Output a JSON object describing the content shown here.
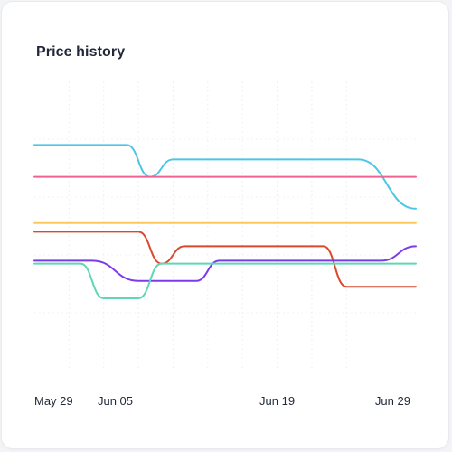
{
  "card": {
    "title": "Price history"
  },
  "chart_data": {
    "type": "line",
    "title": "Price history",
    "xlabel": "",
    "ylabel": "",
    "grid": true,
    "legend": "none",
    "x_tick_labels": [
      "May 29",
      "Jun 05",
      "Jun 19",
      "Jun 29"
    ],
    "x_ticks": [
      "2024-05-29",
      "2024-06-05",
      "2024-06-19",
      "2024-06-29"
    ],
    "xlim": [
      "2024-05-29",
      "2024-07-01"
    ],
    "ylim": [
      0,
      100
    ],
    "series": [
      {
        "color": "#4cc6e6",
        "points": [
          [
            "2024-05-29",
            78
          ],
          [
            "2024-06-06",
            78
          ],
          [
            "2024-06-08",
            67
          ],
          [
            "2024-06-10",
            73
          ],
          [
            "2024-06-26",
            73
          ],
          [
            "2024-07-01",
            56
          ]
        ]
      },
      {
        "color": "#f0628f",
        "points": [
          [
            "2024-05-29",
            67
          ],
          [
            "2024-07-01",
            67
          ]
        ]
      },
      {
        "color": "#fdc85a",
        "points": [
          [
            "2024-05-29",
            51
          ],
          [
            "2024-07-01",
            51
          ]
        ]
      },
      {
        "color": "#d9492e",
        "points": [
          [
            "2024-05-29",
            48
          ],
          [
            "2024-06-07",
            48
          ],
          [
            "2024-06-09",
            37
          ],
          [
            "2024-06-11",
            43
          ],
          [
            "2024-06-23",
            43
          ],
          [
            "2024-06-25",
            29
          ],
          [
            "2024-07-01",
            29
          ]
        ]
      },
      {
        "color": "#7c3aed",
        "points": [
          [
            "2024-05-29",
            38
          ],
          [
            "2024-06-03",
            38
          ],
          [
            "2024-06-07",
            31
          ],
          [
            "2024-06-12",
            31
          ],
          [
            "2024-06-14",
            38
          ],
          [
            "2024-06-28",
            38
          ],
          [
            "2024-07-01",
            43
          ]
        ]
      },
      {
        "color": "#5fd6b4",
        "points": [
          [
            "2024-05-29",
            37
          ],
          [
            "2024-06-02",
            37
          ],
          [
            "2024-06-04",
            25
          ],
          [
            "2024-06-07",
            25
          ],
          [
            "2024-06-09",
            37
          ],
          [
            "2024-07-01",
            37
          ]
        ]
      }
    ]
  }
}
